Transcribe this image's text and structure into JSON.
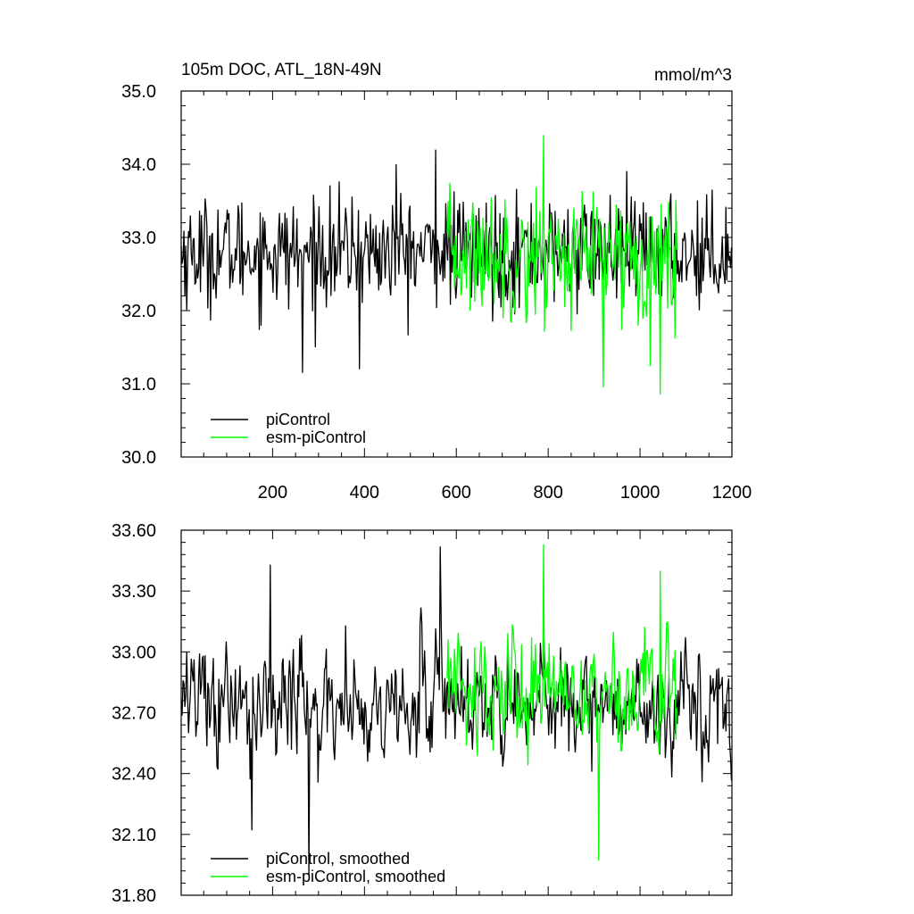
{
  "chart_data": [
    {
      "type": "line",
      "title": "105m DOC, ATL_18N-49N",
      "units": "mmol/m^3",
      "xlim": [
        1,
        1200
      ],
      "ylim": [
        30.0,
        35.0
      ],
      "x_ticks": [
        200,
        400,
        600,
        800,
        1000,
        1200
      ],
      "y_ticks": [
        "30.0",
        "31.0",
        "32.0",
        "33.0",
        "34.0",
        "35.0"
      ],
      "legend_position": "bottom-left",
      "series": [
        {
          "name": "piControl",
          "color": "#000000",
          "x_range": [
            1,
            1200
          ],
          "mean": 32.8,
          "range": [
            31.15,
            34.25
          ],
          "notable_points": [
            {
              "x": 265,
              "y": 31.15
            },
            {
              "x": 390,
              "y": 31.2
            },
            {
              "x": 555,
              "y": 34.2
            },
            {
              "x": 470,
              "y": 34.0
            }
          ]
        },
        {
          "name": "esm-piControl",
          "color": "#00ff00",
          "x_range": [
            580,
            1080
          ],
          "mean": 32.75,
          "range": [
            30.85,
            34.4
          ],
          "notable_points": [
            {
              "x": 790,
              "y": 34.4
            },
            {
              "x": 920,
              "y": 30.95
            },
            {
              "x": 1045,
              "y": 30.85
            }
          ]
        }
      ]
    },
    {
      "type": "line",
      "title": "",
      "xlim": [
        1,
        1200
      ],
      "ylim": [
        31.8,
        33.6
      ],
      "x_ticks": [
        200,
        400,
        600,
        800,
        1000,
        1200
      ],
      "y_ticks": [
        "31.80",
        "32.10",
        "32.40",
        "32.70",
        "33.00",
        "33.30",
        "33.60"
      ],
      "legend_position": "bottom-left",
      "series": [
        {
          "name": "piControl, smoothed",
          "color": "#000000",
          "x_range": [
            1,
            1200
          ],
          "mean": 32.75,
          "range": [
            31.9,
            33.52
          ],
          "notable_points": [
            {
              "x": 280,
              "y": 31.9
            },
            {
              "x": 195,
              "y": 33.43
            },
            {
              "x": 565,
              "y": 33.52
            },
            {
              "x": 155,
              "y": 32.12
            }
          ]
        },
        {
          "name": "esm-piControl, smoothed",
          "color": "#00ff00",
          "x_range": [
            580,
            1080
          ],
          "mean": 32.8,
          "range": [
            31.97,
            33.53
          ],
          "notable_points": [
            {
              "x": 790,
              "y": 33.53
            },
            {
              "x": 910,
              "y": 31.97
            },
            {
              "x": 1045,
              "y": 33.4
            }
          ]
        }
      ]
    }
  ]
}
